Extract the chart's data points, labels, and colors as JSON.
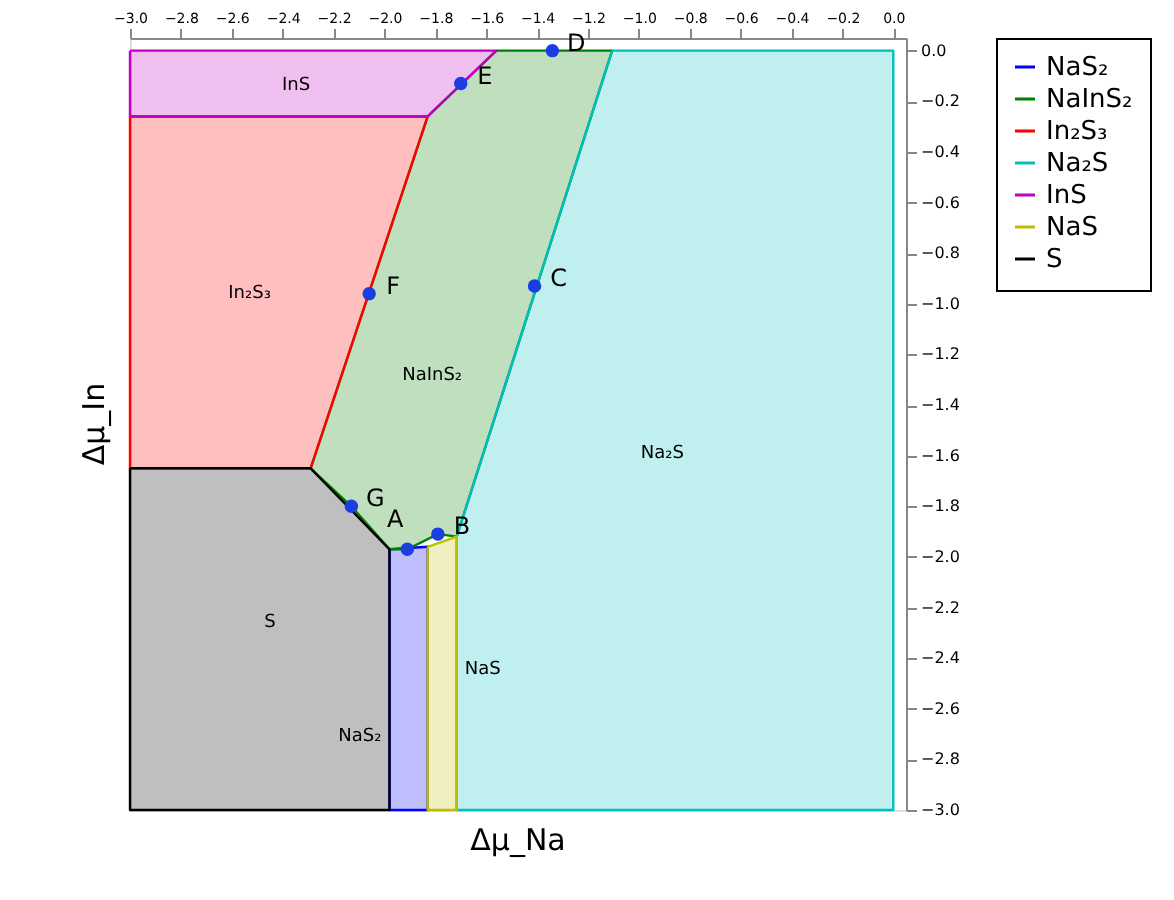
{
  "chart_data": {
    "type": "area",
    "xlabel": "Δμ_Na",
    "ylabel": "Δμ_In",
    "xlim": [
      -3.0,
      0.05
    ],
    "ylim": [
      -3.0,
      0.05
    ],
    "xticks": [
      {
        "value": -3,
        "label": "−3.0"
      },
      -2.8,
      -2.6,
      -2.4,
      -2.2,
      {
        "value": -2,
        "label": "−2.0"
      },
      -1.8,
      -1.6,
      -1.4,
      -1.2,
      {
        "value": -1,
        "label": "−1.0"
      },
      -0.8,
      -0.6,
      -0.4,
      -0.2,
      {
        "value": 0,
        "label": "0.0"
      }
    ],
    "yticks": [
      {
        "value": 0,
        "label": "0.0"
      },
      -0.2,
      -0.4,
      -0.6,
      -0.8,
      {
        "value": -1,
        "label": "−1.0"
      },
      -1.2,
      -1.4,
      -1.6,
      -1.8,
      {
        "value": -2,
        "label": "−2.0"
      },
      -2.2,
      -2.4,
      -2.6,
      -2.8,
      {
        "value": -3,
        "label": "−3.0"
      }
    ],
    "grid": false,
    "legend": "right",
    "series": [
      {
        "name": "NaS₂",
        "color": "#0000ff",
        "x": [
          -1.98,
          -1.83,
          -1.83,
          -1.98
        ],
        "values": [
          -1.97,
          -1.96,
          -3.0,
          -3.0
        ]
      },
      {
        "name": "NaInS₂",
        "color": "#008000",
        "x": [
          -1.56,
          -1.105,
          -1.716,
          -1.79,
          -1.91,
          -1.98,
          -2.13,
          -2.29,
          -1.83
        ],
        "values": [
          0.0,
          0.0,
          -1.92,
          -1.91,
          -1.97,
          -1.97,
          -1.8,
          -1.65,
          -0.26
        ]
      },
      {
        "name": "In₂S₃",
        "color": "#ff0000",
        "x": [
          -3.0,
          -1.83,
          -2.29,
          -3.0
        ],
        "values": [
          -0.26,
          -0.26,
          -1.65,
          -1.65
        ]
      },
      {
        "name": "Na₂S",
        "color": "#00bfbf",
        "x": [
          -1.105,
          0.0,
          0.0,
          -1.716,
          -1.716
        ],
        "values": [
          0.0,
          0.0,
          -3.0,
          -3.0,
          -1.92
        ]
      },
      {
        "name": "InS",
        "color": "#bf00bf",
        "x": [
          -3.0,
          -1.56,
          -1.83,
          -3.0
        ],
        "values": [
          0.0,
          0.0,
          -0.26,
          -0.26
        ]
      },
      {
        "name": "NaS",
        "color": "#bfbf00",
        "x": [
          -1.83,
          -1.716,
          -1.716,
          -1.83
        ],
        "values": [
          -1.96,
          -1.92,
          -3.0,
          -3.0
        ]
      },
      {
        "name": "S",
        "color": "#000000",
        "x": [
          -3.0,
          -2.29,
          -1.98,
          -1.98,
          -3.0
        ],
        "values": [
          -1.65,
          -1.65,
          -1.97,
          -3.0,
          -3.0
        ]
      },
      {
        "type": "scatter",
        "color": "#1a3ee0",
        "marker": "circle",
        "x": [
          -1.91,
          -1.79,
          -1.41,
          -1.34,
          -1.7,
          -2.06,
          -2.13
        ],
        "values": [
          -1.97,
          -1.91,
          -0.93,
          0.0,
          -0.13,
          -0.96,
          -1.8
        ]
      }
    ],
    "annotations": [
      {
        "text": "A",
        "x": -1.91,
        "y": -1.97
      },
      {
        "text": "B",
        "x": -1.79,
        "y": -1.91
      },
      {
        "text": "C",
        "x": -1.41,
        "y": -0.93
      },
      {
        "text": "D",
        "x": -1.34,
        "y": 0.0
      },
      {
        "text": "E",
        "x": -1.7,
        "y": -0.13
      },
      {
        "text": "F",
        "x": -2.06,
        "y": -0.96
      },
      {
        "text": "G",
        "x": -2.13,
        "y": -1.8
      }
    ]
  }
}
